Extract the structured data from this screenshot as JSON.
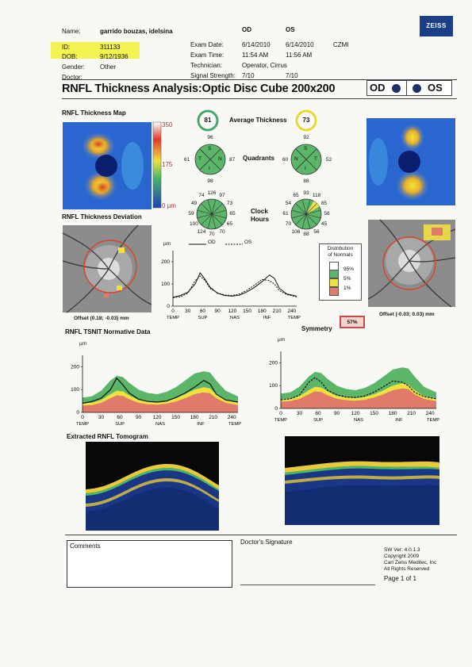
{
  "header": {
    "labels": {
      "name": "Name:",
      "id": "ID:",
      "dob": "DOB:",
      "gender": "Gender:",
      "doctor": "Doctor:",
      "exam_date": "Exam Date:",
      "exam_time": "Exam Time:",
      "technician": "Technician:",
      "signal_strength": "Signal Strength:"
    },
    "name": "garrido bouzas, idelsina",
    "id": "311133",
    "dob": "9/12/1936",
    "gender": "Other",
    "doctor": "",
    "od_label": "OD",
    "os_label": "OS",
    "exam_date_od": "6/14/2010",
    "exam_date_os": "6/14/2010",
    "device": "CZMI",
    "exam_time_od": "11:54 AM",
    "exam_time_os": "11:56 AM",
    "technician": "Operator, Cirrus",
    "signal_strength_od": "7/10",
    "signal_strength_os": "7/10",
    "logo_text": "ZEISS"
  },
  "report": {
    "title": "RNFL Thickness Analysis:Optic Disc Cube 200x200",
    "od": "OD",
    "os": "OS"
  },
  "thickness_map": {
    "label": "RNFL Thickness Map",
    "scale_max": "350",
    "scale_mid": "175",
    "scale_min": "0 µm"
  },
  "deviation": {
    "label": "RNFL Thickness Deviation",
    "offset_od": "Offset (0.18; -0.03) mm",
    "offset_os": "Offset (-0.03; 0.03) mm"
  },
  "average_thickness": {
    "label": "Average Thickness",
    "od": "81",
    "os": "73"
  },
  "quadrants": {
    "label": "Quadrants",
    "od": {
      "top": "96",
      "left": "61",
      "right": "87",
      "bottom": "98"
    },
    "os": {
      "top": "92",
      "left": "60",
      "right": "52",
      "bottom": "88"
    },
    "letters_od": [
      "S",
      "T",
      "N",
      "I"
    ],
    "letters_os": [
      "S",
      "N",
      "T",
      "I"
    ]
  },
  "clock_hours": {
    "label_line1": "Clock",
    "label_line2": "Hours",
    "od": [
      "97",
      "73",
      "65",
      "65",
      "70",
      "70",
      "124",
      "100",
      "59",
      "49",
      "74",
      "126"
    ],
    "os": [
      "118",
      "85",
      "56",
      "45",
      "56",
      "88",
      "106",
      "70",
      "61",
      "54",
      "65",
      "93"
    ]
  },
  "tsnit_compare": {
    "unit": "µm",
    "legend_od": "OD",
    "legend_os": "OS",
    "y_ticks": [
      "200",
      "100",
      "0"
    ],
    "x_ticks": [
      "0",
      "30",
      "60",
      "90",
      "120",
      "150",
      "180",
      "210",
      "240"
    ],
    "x_regions": [
      "TEMP",
      "SUP",
      "NAS",
      "INF",
      "TEMP"
    ]
  },
  "distribution": {
    "title_line1": "Distribution",
    "title_line2": "of Normals",
    "p95": "95%",
    "p5": "5%",
    "p1": "1%",
    "colors": {
      "white": "#ffffff",
      "green": "#5bb66a",
      "yellow": "#f0e040",
      "red": "#e07a6a"
    }
  },
  "symmetry": {
    "label": "Symmetry",
    "value": "57%"
  },
  "normative": {
    "label": "RNFL TSNIT Normative Data",
    "unit": "µm",
    "y_ticks": [
      "200",
      "100",
      "0"
    ],
    "x_ticks": [
      "0",
      "30",
      "60",
      "90",
      "120",
      "150",
      "180",
      "210",
      "240"
    ],
    "x_regions": [
      "TEMP",
      "SUP",
      "NAS",
      "INF",
      "TEMP"
    ]
  },
  "tomogram": {
    "label": "Extracted RNFL Tomogram"
  },
  "footer": {
    "comments_label": "Comments",
    "signature_label": "Doctor's Signature",
    "sw_version": "SW Ver: 4.0.1.3",
    "copyright": "Copyright 2009",
    "company": "Carl Zeiss Meditec, Inc",
    "rights": "All Rights Reserved",
    "page": "Page 1 of 1"
  },
  "chart_data": [
    {
      "type": "line",
      "x": [
        0,
        15,
        30,
        45,
        55,
        65,
        75,
        90,
        105,
        120,
        135,
        150,
        165,
        180,
        195,
        205,
        215,
        230,
        250
      ],
      "series": [
        {
          "name": "OD",
          "values": [
            40,
            48,
            62,
            100,
            150,
            120,
            85,
            58,
            48,
            45,
            50,
            65,
            85,
            110,
            140,
            125,
            80,
            55,
            45
          ]
        },
        {
          "name": "OS",
          "values": [
            38,
            42,
            58,
            115,
            135,
            115,
            80,
            60,
            50,
            48,
            55,
            72,
            95,
            120,
            115,
            100,
            70,
            52,
            42
          ]
        }
      ],
      "xlabel": "",
      "ylabel": "µm",
      "ylim": [
        0,
        250
      ],
      "xlim": [
        0,
        250
      ]
    },
    {
      "type": "area",
      "x": [
        0,
        15,
        30,
        45,
        55,
        65,
        75,
        90,
        105,
        120,
        135,
        150,
        165,
        180,
        195,
        205,
        215,
        230,
        250
      ],
      "series": [
        {
          "name": "95%",
          "values": [
            65,
            70,
            95,
            140,
            160,
            155,
            130,
            100,
            85,
            80,
            90,
            110,
            140,
            170,
            180,
            175,
            140,
            95,
            70
          ]
        },
        {
          "name": "5%",
          "values": [
            40,
            42,
            55,
            80,
            95,
            92,
            75,
            55,
            48,
            45,
            50,
            62,
            80,
            100,
            110,
            105,
            80,
            55,
            42
          ]
        },
        {
          "name": "1%",
          "values": [
            30,
            32,
            42,
            62,
            75,
            72,
            58,
            42,
            36,
            34,
            38,
            48,
            62,
            80,
            88,
            84,
            62,
            42,
            32
          ]
        },
        {
          "name": "OD",
          "values": [
            40,
            48,
            62,
            100,
            150,
            120,
            85,
            58,
            48,
            45,
            50,
            65,
            85,
            110,
            140,
            125,
            80,
            55,
            45
          ]
        }
      ],
      "ylabel": "µm",
      "ylim": [
        0,
        250
      ],
      "xlim": [
        0,
        250
      ]
    },
    {
      "type": "area",
      "x": [
        0,
        15,
        30,
        45,
        55,
        65,
        75,
        90,
        105,
        120,
        135,
        150,
        165,
        180,
        195,
        205,
        215,
        230,
        250
      ],
      "series": [
        {
          "name": "95%",
          "values": [
            65,
            70,
            95,
            140,
            160,
            155,
            130,
            100,
            85,
            80,
            90,
            110,
            140,
            170,
            180,
            175,
            140,
            95,
            70
          ]
        },
        {
          "name": "5%",
          "values": [
            40,
            42,
            55,
            80,
            95,
            92,
            75,
            55,
            48,
            45,
            50,
            62,
            80,
            100,
            110,
            105,
            80,
            55,
            42
          ]
        },
        {
          "name": "1%",
          "values": [
            30,
            32,
            42,
            62,
            75,
            72,
            58,
            42,
            36,
            34,
            38,
            48,
            62,
            80,
            88,
            84,
            62,
            42,
            32
          ]
        },
        {
          "name": "OS",
          "values": [
            38,
            42,
            58,
            115,
            135,
            115,
            80,
            60,
            50,
            48,
            55,
            72,
            95,
            120,
            115,
            100,
            70,
            52,
            42
          ]
        }
      ],
      "ylabel": "µm",
      "ylim": [
        0,
        250
      ],
      "xlim": [
        0,
        250
      ]
    }
  ]
}
